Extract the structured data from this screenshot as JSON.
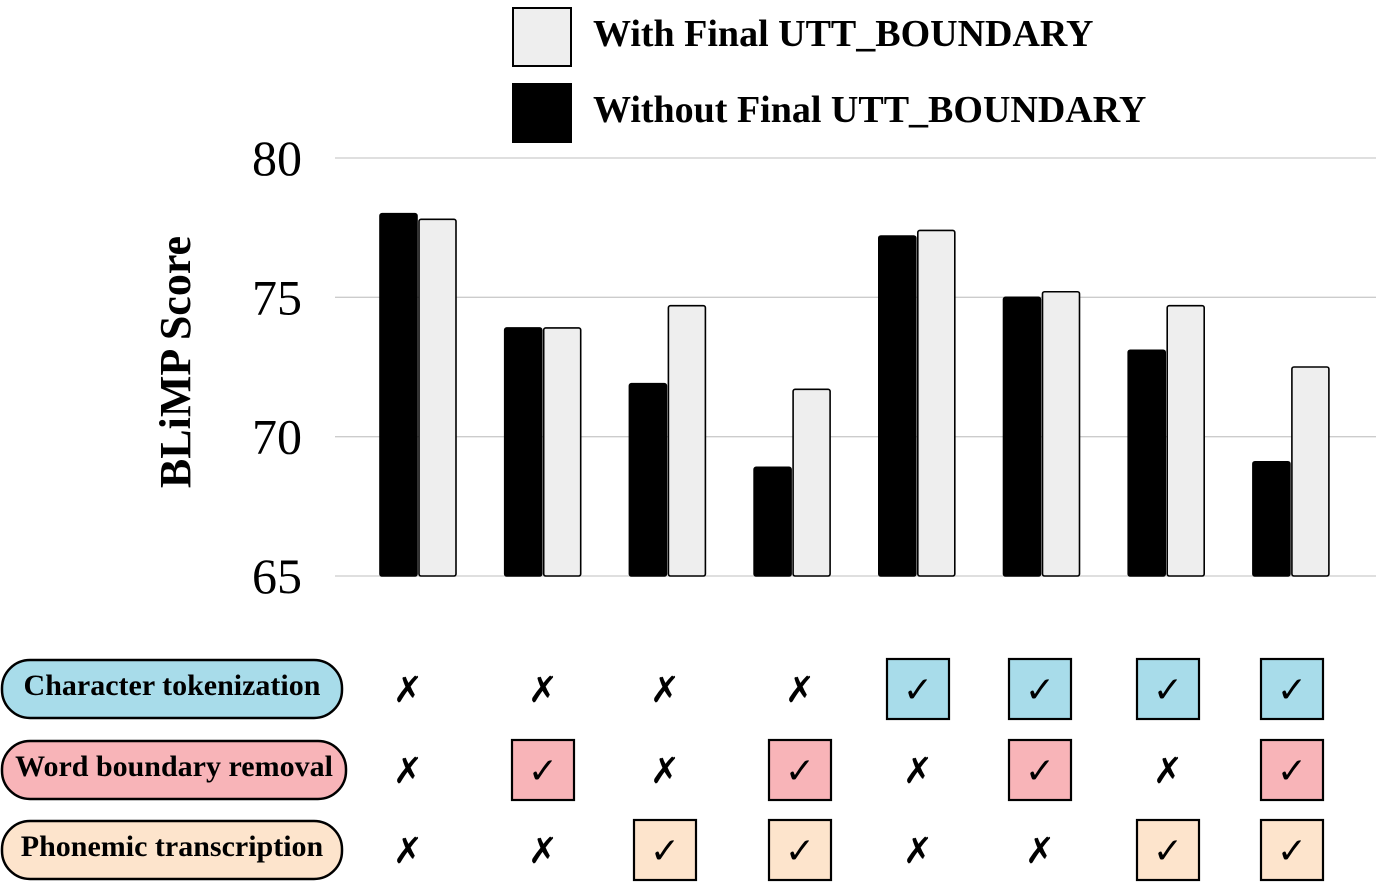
{
  "chart_data": {
    "type": "bar",
    "ylabel": "BLiMP Score",
    "ylim": [
      65,
      80
    ],
    "yticks": [
      "65",
      "70",
      "75",
      "80"
    ],
    "grid": true,
    "legend_position": "top-center",
    "series": [
      {
        "name": "Without Final UTT_BOUNDARY",
        "color": "#000000",
        "values": [
          78.0,
          73.9,
          71.9,
          68.9,
          77.2,
          75.0,
          73.1,
          69.1
        ]
      },
      {
        "name": "With Final UTT_BOUNDARY",
        "color": "#eeeeee",
        "values": [
          77.8,
          73.9,
          74.7,
          71.7,
          77.4,
          75.2,
          74.7,
          72.5
        ]
      }
    ],
    "legend_order": [
      1,
      0
    ],
    "conditions": [
      {
        "label": "Character tokenization",
        "color": "#a8dcea",
        "checked": [
          false,
          false,
          false,
          false,
          true,
          true,
          true,
          true
        ]
      },
      {
        "label": "Word boundary removal",
        "color": "#f8b4b8",
        "checked": [
          false,
          true,
          false,
          true,
          false,
          true,
          false,
          true
        ]
      },
      {
        "label": "Phonemic transcription",
        "color": "#fde4cc",
        "checked": [
          false,
          false,
          true,
          true,
          false,
          false,
          true,
          true
        ]
      }
    ],
    "check_symbol": "✓",
    "cross_symbol": "✗"
  }
}
